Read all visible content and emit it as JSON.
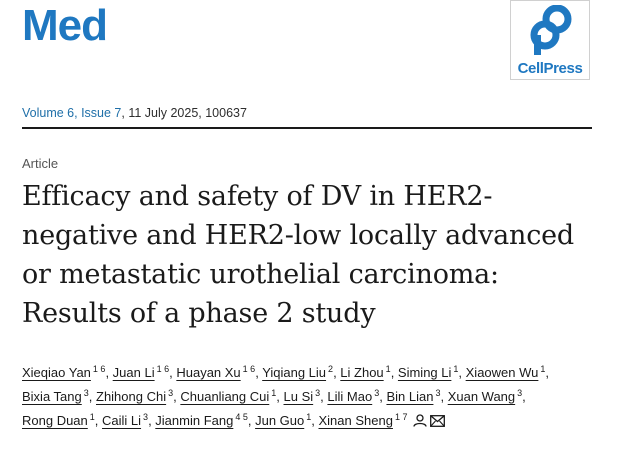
{
  "journal": {
    "name": "Med"
  },
  "publisher": {
    "name": "CellPress"
  },
  "issue": {
    "volume_issue": "Volume 6, Issue 7",
    "date_id": ", 11 July 2025, 100637"
  },
  "article": {
    "type": "Article",
    "title": "Efficacy and safety of DV in HER2-negative and HER2-low locally advanced or metastatic urothelial carcinoma: Results of a phase 2 study"
  },
  "authors": [
    {
      "name": "Xieqiao Yan",
      "aff": "1 6"
    },
    {
      "name": "Juan Li",
      "aff": "1 6"
    },
    {
      "name": "Huayan Xu",
      "aff": "1 6"
    },
    {
      "name": "Yiqiang Liu",
      "aff": "2"
    },
    {
      "name": "Li Zhou",
      "aff": "1"
    },
    {
      "name": "Siming Li",
      "aff": "1"
    },
    {
      "name": "Xiaowen Wu",
      "aff": "1"
    },
    {
      "name": "Bixia Tang",
      "aff": "3"
    },
    {
      "name": "Zhihong Chi",
      "aff": "3"
    },
    {
      "name": "Chuanliang Cui",
      "aff": "1"
    },
    {
      "name": "Lu Si",
      "aff": "3"
    },
    {
      "name": "Lili Mao",
      "aff": "3"
    },
    {
      "name": "Bin Lian",
      "aff": "3"
    },
    {
      "name": "Xuan Wang",
      "aff": "3"
    },
    {
      "name": "Rong Duan",
      "aff": "1"
    },
    {
      "name": "Caili Li",
      "aff": "3"
    },
    {
      "name": "Jianmin Fang",
      "aff": "4 5"
    },
    {
      "name": "Jun Guo",
      "aff": "1"
    },
    {
      "name": "Xinan Sheng",
      "aff": "1 7"
    }
  ],
  "icons": [
    "person-icon",
    "mail-icon"
  ],
  "colors": {
    "brand": "#1f78c1",
    "link": "#1f6fa8",
    "text": "#1a1a1a"
  }
}
